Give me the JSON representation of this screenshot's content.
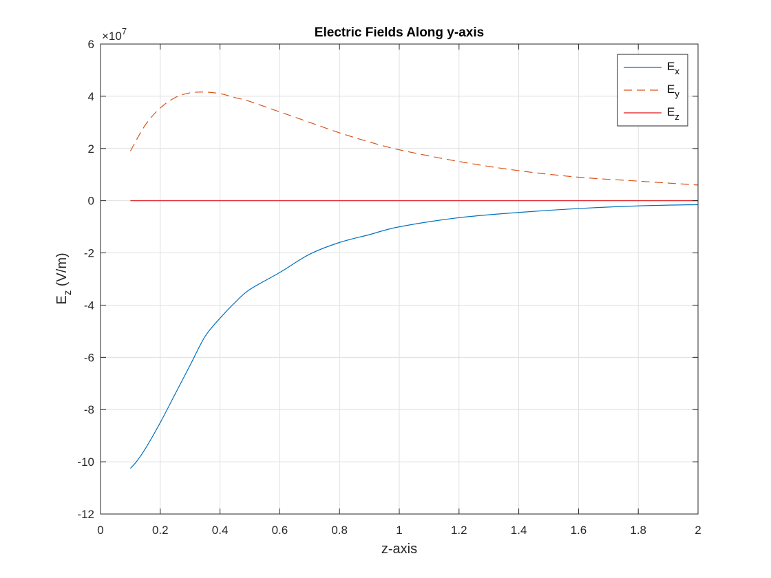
{
  "chart_data": {
    "type": "line",
    "title": "Electric Fields Along y-axis",
    "xlabel": "z-axis",
    "ylabel_main": "E",
    "ylabel_sub": "z",
    "ylabel_unit": " (V/m)",
    "y_exponent_prefix": "×10",
    "y_exponent_power": "7",
    "xlim": [
      0,
      2
    ],
    "ylim": [
      -12,
      6
    ],
    "x_ticks": [
      0,
      0.2,
      0.4,
      0.6,
      0.8,
      1,
      1.2,
      1.4,
      1.6,
      1.8,
      2
    ],
    "x_tick_labels": [
      "0",
      "0.2",
      "0.4",
      "0.6",
      "0.8",
      "1",
      "1.2",
      "1.4",
      "1.6",
      "1.8",
      "2"
    ],
    "y_ticks": [
      -12,
      -10,
      -8,
      -6,
      -4,
      -2,
      0,
      2,
      4,
      6
    ],
    "y_tick_labels": [
      "-12",
      "-10",
      "-8",
      "-6",
      "-4",
      "-2",
      "0",
      "2",
      "4",
      "6"
    ],
    "grid": true,
    "legend_position": "top-right",
    "series": [
      {
        "name": "E",
        "name_sub": "x",
        "color": "#0072BD",
        "dash": "solid",
        "x": [
          0.1,
          0.12,
          0.15,
          0.2,
          0.25,
          0.3,
          0.35,
          0.4,
          0.45,
          0.5,
          0.6,
          0.7,
          0.8,
          0.9,
          1.0,
          1.2,
          1.4,
          1.6,
          1.8,
          2.0
        ],
        "y": [
          -10.25,
          -10.0,
          -9.5,
          -8.5,
          -7.4,
          -6.3,
          -5.2,
          -4.5,
          -3.9,
          -3.4,
          -2.75,
          -2.05,
          -1.6,
          -1.3,
          -1.0,
          -0.65,
          -0.45,
          -0.3,
          -0.2,
          -0.15
        ]
      },
      {
        "name": "E",
        "name_sub": "y",
        "color": "#D95319",
        "dash": "dashed",
        "x": [
          0.1,
          0.15,
          0.2,
          0.25,
          0.3,
          0.35,
          0.4,
          0.45,
          0.5,
          0.6,
          0.7,
          0.8,
          0.9,
          1.0,
          1.2,
          1.4,
          1.6,
          1.8,
          2.0
        ],
        "y": [
          1.9,
          2.9,
          3.55,
          3.95,
          4.13,
          4.16,
          4.1,
          3.95,
          3.8,
          3.4,
          3.0,
          2.6,
          2.25,
          1.95,
          1.5,
          1.15,
          0.9,
          0.75,
          0.6
        ]
      },
      {
        "name": "E",
        "name_sub": "z",
        "color": "#E0161B",
        "dash": "solid",
        "x": [
          0.1,
          2.0
        ],
        "y": [
          0,
          0
        ]
      }
    ]
  }
}
